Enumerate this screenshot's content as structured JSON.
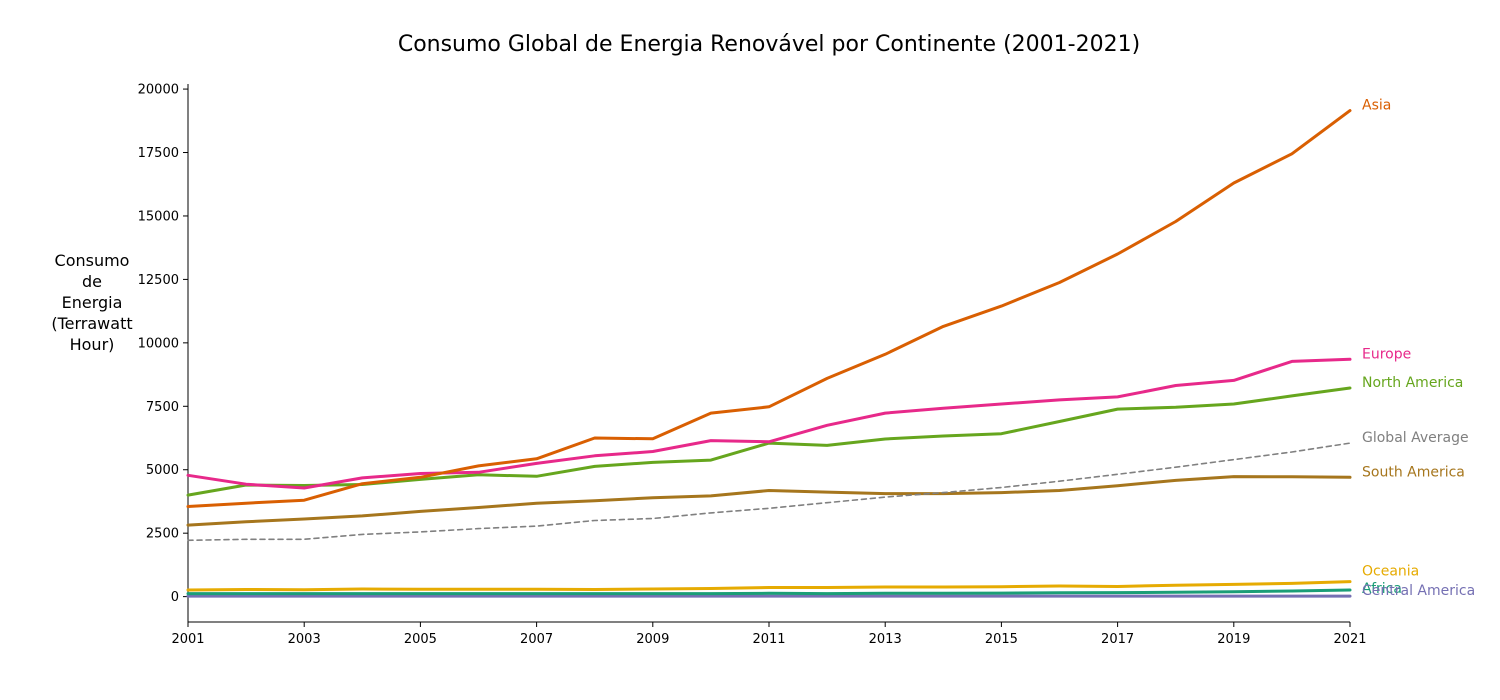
{
  "chart_data": {
    "type": "line",
    "title": "Consumo Global de Energia Renovável por Continente (2001-2021)",
    "ylabel_lines": [
      "Consumo",
      "de",
      "Energia",
      "(Terrawatt",
      "Hour)"
    ],
    "xlabel": "",
    "x": [
      2001,
      2002,
      2003,
      2004,
      2005,
      2006,
      2007,
      2008,
      2009,
      2010,
      2011,
      2012,
      2013,
      2014,
      2015,
      2016,
      2017,
      2018,
      2019,
      2020,
      2021
    ],
    "xticks": [
      2001,
      2003,
      2005,
      2007,
      2009,
      2011,
      2013,
      2015,
      2017,
      2019,
      2021
    ],
    "yticks": [
      0,
      2500,
      5000,
      7500,
      10000,
      12500,
      15000,
      17500,
      20000
    ],
    "xlim": [
      2001,
      2021
    ],
    "ylim": [
      -1000,
      20200
    ],
    "grid": false,
    "series": [
      {
        "name": "Asia",
        "color": "#d95f02",
        "dashed": false,
        "values": [
          3550,
          3680,
          3800,
          4450,
          4700,
          5150,
          5430,
          6250,
          6220,
          7230,
          7480,
          8600,
          9550,
          10650,
          11450,
          12380,
          13500,
          14780,
          16300,
          17450,
          19150
        ]
      },
      {
        "name": "Europe",
        "color": "#e7298a",
        "dashed": false,
        "values": [
          4780,
          4430,
          4280,
          4680,
          4850,
          4900,
          5250,
          5550,
          5720,
          6150,
          6100,
          6750,
          7230,
          7420,
          7590,
          7750,
          7870,
          8320,
          8520,
          9270,
          9350
        ]
      },
      {
        "name": "North America",
        "color": "#66a61e",
        "dashed": false,
        "values": [
          4000,
          4400,
          4380,
          4420,
          4620,
          4800,
          4740,
          5130,
          5290,
          5380,
          6050,
          5960,
          6210,
          6330,
          6420,
          6900,
          7390,
          7460,
          7590,
          7910,
          8220
        ]
      },
      {
        "name": "Global Average",
        "color": "#808080",
        "dashed": true,
        "values": [
          2220,
          2260,
          2260,
          2450,
          2550,
          2680,
          2780,
          3000,
          3080,
          3300,
          3480,
          3700,
          3920,
          4100,
          4300,
          4550,
          4820,
          5100,
          5400,
          5700,
          6050
        ]
      },
      {
        "name": "South America",
        "color": "#a6761d",
        "dashed": false,
        "values": [
          2820,
          2950,
          3060,
          3180,
          3360,
          3510,
          3680,
          3780,
          3900,
          3970,
          4180,
          4120,
          4060,
          4060,
          4100,
          4180,
          4370,
          4580,
          4730,
          4720,
          4700
        ]
      },
      {
        "name": "Oceania",
        "color": "#e6ab02",
        "dashed": false,
        "values": [
          260,
          280,
          270,
          300,
          290,
          290,
          290,
          280,
          300,
          320,
          360,
          360,
          380,
          380,
          390,
          420,
          400,
          450,
          480,
          520,
          590
        ]
      },
      {
        "name": "Africa",
        "color": "#1b9e77",
        "dashed": false,
        "values": [
          120,
          120,
          120,
          120,
          120,
          120,
          120,
          120,
          120,
          120,
          130,
          120,
          130,
          130,
          140,
          150,
          160,
          170,
          190,
          220,
          260
        ]
      },
      {
        "name": "Central America",
        "color": "#7570b3",
        "dashed": false,
        "values": [
          20,
          20,
          20,
          20,
          20,
          20,
          20,
          20,
          20,
          20,
          20,
          20,
          20,
          20,
          20,
          20,
          20,
          20,
          20,
          20,
          20
        ]
      }
    ],
    "label_order": [
      "Asia",
      "Europe",
      "North America",
      "Global Average",
      "South America",
      "Oceania",
      "Africa",
      "Central America"
    ]
  }
}
